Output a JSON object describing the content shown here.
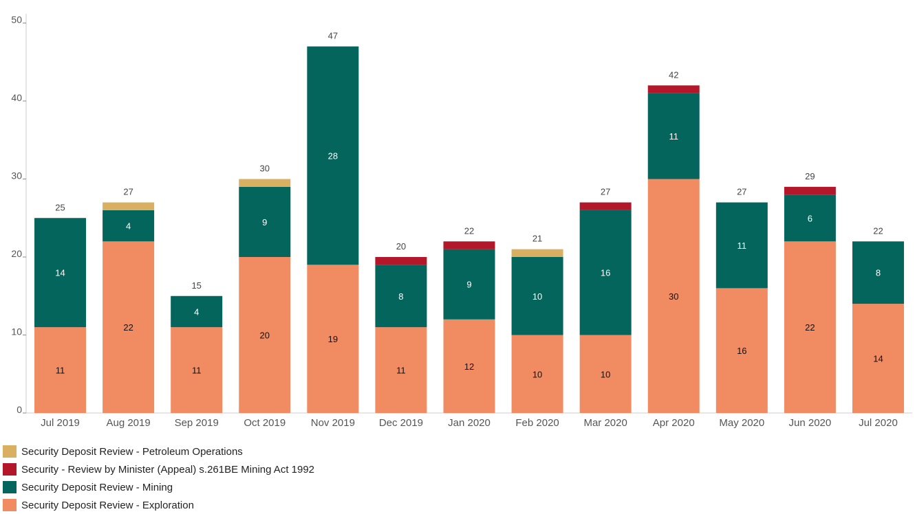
{
  "chart_data": {
    "type": "bar",
    "stacked": true,
    "title": "",
    "xlabel": "",
    "ylabel": "",
    "ylim": [
      0,
      52
    ],
    "yticks": [
      0,
      10,
      20,
      30,
      40,
      50
    ],
    "grid": false,
    "legend_position": "bottom-left",
    "categories": [
      "Jul 2019",
      "Aug 2019",
      "Sep 2019",
      "Oct 2019",
      "Nov 2019",
      "Dec 2019",
      "Jan 2020",
      "Feb 2020",
      "Mar 2020",
      "Apr 2020",
      "May 2020",
      "Jun 2020",
      "Jul 2020"
    ],
    "series": [
      {
        "name": "Security Deposit Review - Exploration",
        "color": "#f08b62",
        "label_color": "#111111",
        "values": [
          11,
          22,
          11,
          20,
          19,
          11,
          12,
          10,
          10,
          30,
          16,
          22,
          14
        ]
      },
      {
        "name": "Security Deposit Review - Mining",
        "color": "#04655c",
        "label_color": "#ffffff",
        "values": [
          14,
          4,
          4,
          9,
          28,
          8,
          9,
          10,
          16,
          11,
          11,
          6,
          8
        ]
      },
      {
        "name": "Security - Review by Minister (Appeal) s.261BE Mining Act 1992",
        "color": "#b3172a",
        "label_color": "#ffffff",
        "values": [
          0,
          0,
          0,
          0,
          0,
          1,
          1,
          0,
          1,
          1,
          0,
          1,
          0
        ]
      },
      {
        "name": "Security Deposit Review - Petroleum Operations",
        "color": "#d9b061",
        "label_color": "#111111",
        "values": [
          0,
          1,
          0,
          1,
          0,
          0,
          0,
          1,
          0,
          0,
          0,
          0,
          0
        ]
      }
    ],
    "totals": [
      25,
      27,
      15,
      30,
      47,
      20,
      22,
      21,
      27,
      42,
      27,
      29,
      22
    ],
    "legend_order": [
      "Security Deposit Review - Petroleum Operations",
      "Security - Review by Minister (Appeal) s.261BE Mining Act 1992",
      "Security Deposit Review - Mining",
      "Security Deposit Review - Exploration"
    ]
  },
  "legend": {
    "items": [
      {
        "label": "Security Deposit Review - Petroleum Operations",
        "color": "#d9b061"
      },
      {
        "label": "Security - Review by Minister (Appeal) s.261BE Mining Act 1992",
        "color": "#b3172a"
      },
      {
        "label": "Security Deposit Review - Mining",
        "color": "#04655c"
      },
      {
        "label": "Security Deposit Review - Exploration",
        "color": "#f08b62"
      }
    ]
  }
}
